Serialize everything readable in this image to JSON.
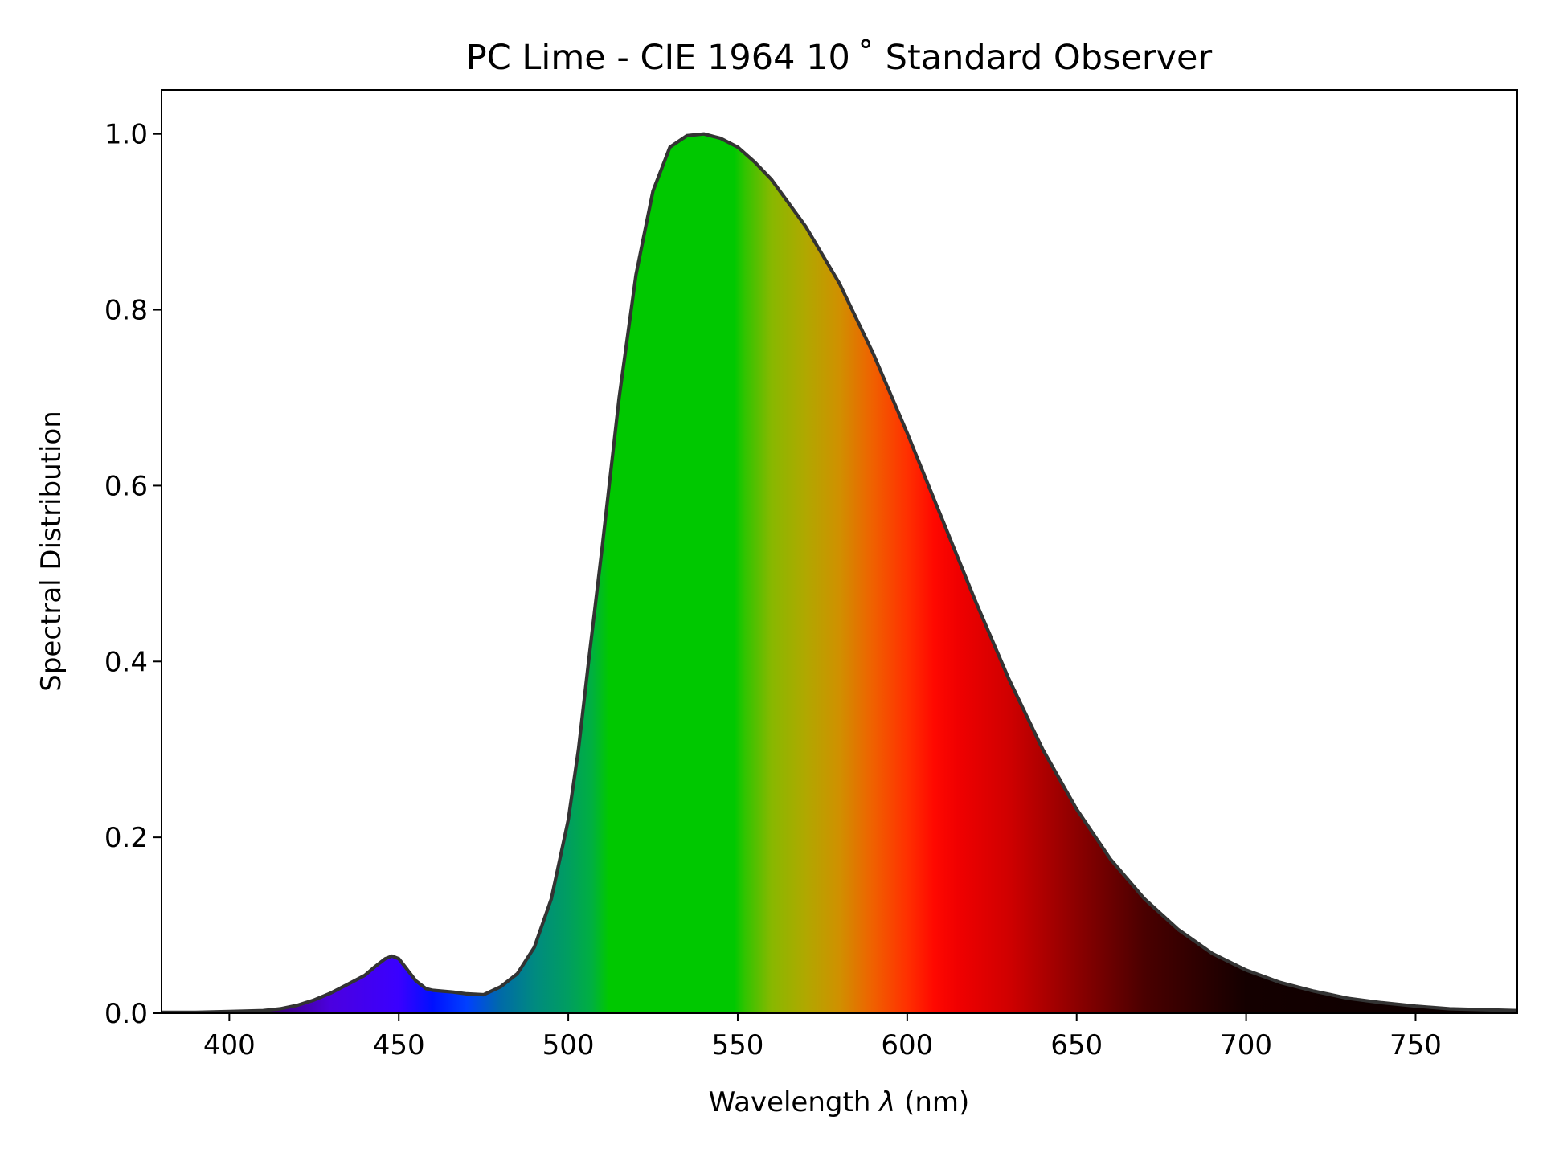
{
  "chart_data": {
    "type": "area",
    "title": "PC Lime - CIE 1964 10$^\\circ$ Standard Observer",
    "title_display": "PC Lime - CIE 1964 10 ˚  Standard Observer",
    "xlabel_prefix": "Wavelength ",
    "xlabel_symbol": "λ",
    "xlabel_suffix": " (nm)",
    "ylabel": "Spectral Distribution",
    "xlim": [
      380,
      780
    ],
    "ylim": [
      0,
      1.05
    ],
    "xticks": [
      400,
      450,
      500,
      550,
      600,
      650,
      700,
      750
    ],
    "yticks": [
      0.0,
      0.2,
      0.4,
      0.6,
      0.8,
      1.0
    ],
    "ytick_labels": [
      "0.0",
      "0.2",
      "0.4",
      "0.6",
      "0.8",
      "1.0"
    ],
    "grid": false,
    "legend": "none",
    "line_color": "#333333",
    "fill": "visible-spectrum gradient",
    "series": [
      {
        "x": [
          380,
          390,
          400,
          410,
          415,
          420,
          425,
          430,
          435,
          440,
          443,
          446,
          448,
          450,
          452,
          455,
          458,
          460,
          463,
          466,
          470,
          475,
          480,
          485,
          490,
          495,
          500,
          503,
          506,
          510,
          515,
          520,
          525,
          530,
          535,
          540,
          545,
          550,
          555,
          560,
          570,
          580,
          590,
          600,
          610,
          620,
          630,
          640,
          650,
          660,
          670,
          680,
          690,
          700,
          710,
          720,
          730,
          740,
          750,
          760,
          770,
          780
        ],
        "y": [
          0.001,
          0.001,
          0.002,
          0.003,
          0.005,
          0.009,
          0.015,
          0.023,
          0.033,
          0.043,
          0.053,
          0.062,
          0.065,
          0.062,
          0.052,
          0.037,
          0.028,
          0.026,
          0.025,
          0.024,
          0.022,
          0.021,
          0.03,
          0.045,
          0.075,
          0.13,
          0.22,
          0.3,
          0.4,
          0.53,
          0.7,
          0.84,
          0.935,
          0.985,
          0.998,
          1.0,
          0.995,
          0.985,
          0.968,
          0.948,
          0.895,
          0.83,
          0.75,
          0.66,
          0.565,
          0.47,
          0.38,
          0.3,
          0.232,
          0.175,
          0.13,
          0.095,
          0.068,
          0.049,
          0.035,
          0.025,
          0.017,
          0.012,
          0.008,
          0.005,
          0.004,
          0.003
        ]
      }
    ]
  }
}
